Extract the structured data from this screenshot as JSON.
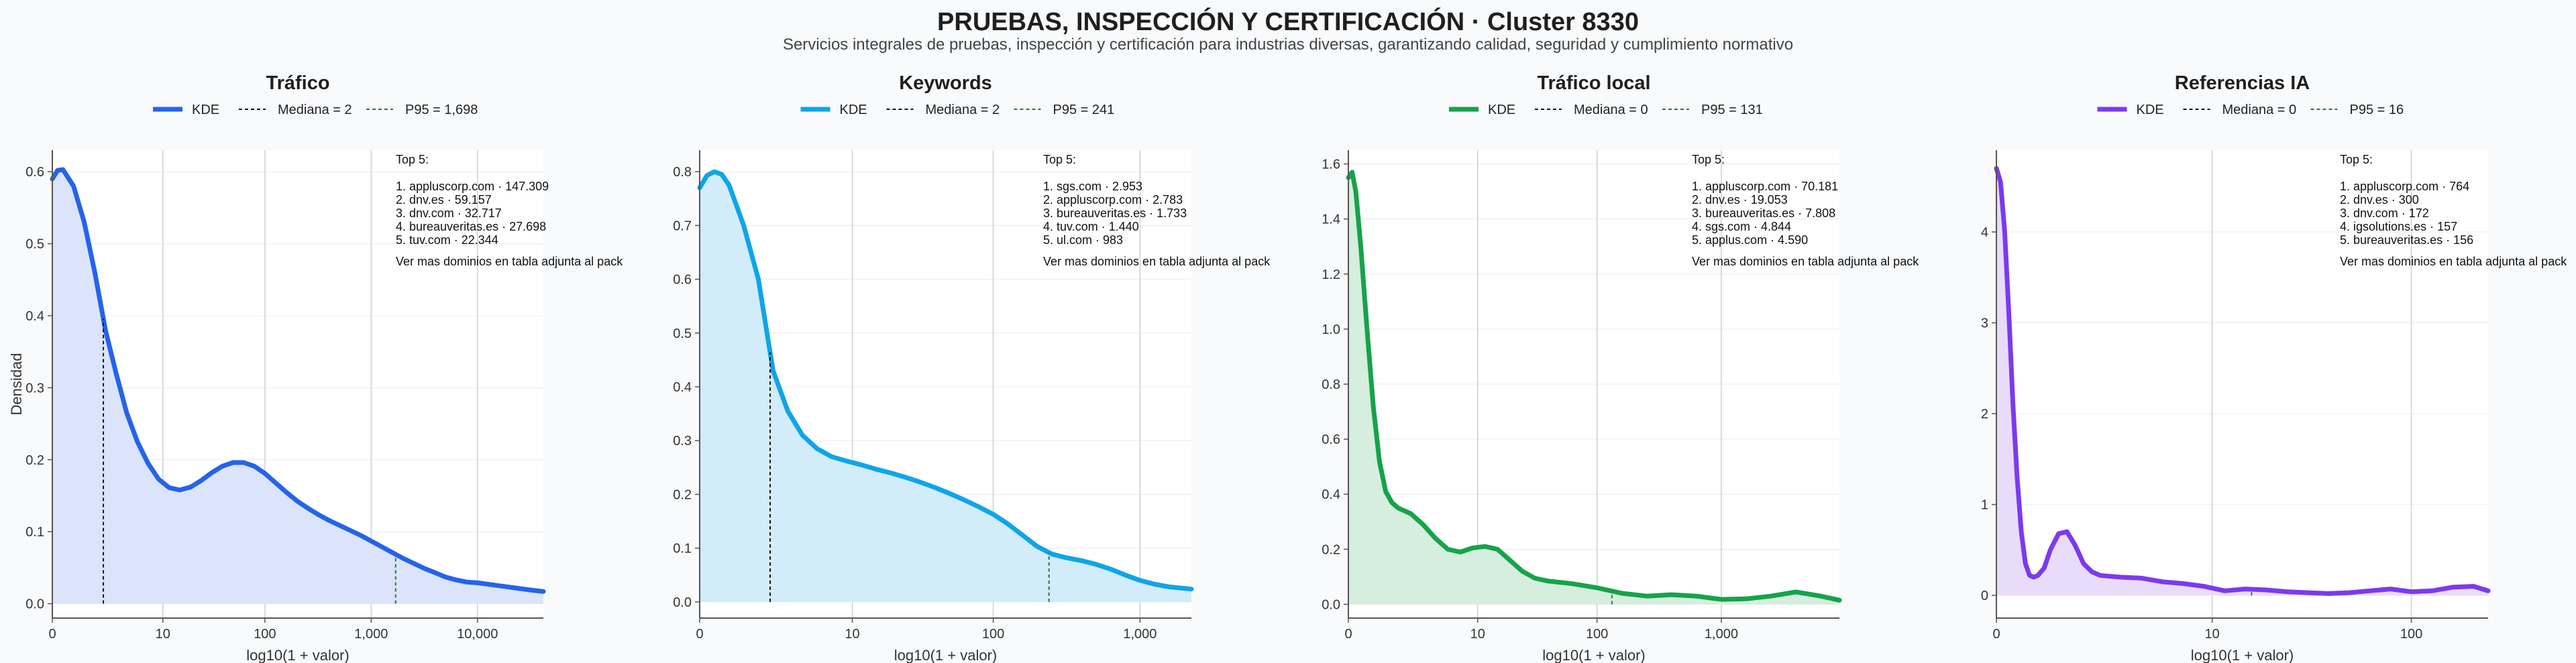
{
  "page": {
    "title": "PRUEBAS, INSPECCIÓN Y CERTIFICACIÓN · Cluster 8330",
    "subtitle": "Servicios integrales de pruebas, inspección y certificación para industrias diversas, garantizando calidad, seguridad y cumplimiento normativo"
  },
  "chart_data": [
    {
      "type": "area",
      "title": "Tráfico",
      "xlabel": "log10(1 + valor)",
      "ylabel": "Densidad",
      "color": "#2563eb",
      "fill": "#dbe4fb",
      "xlim": [
        0,
        4.62
      ],
      "ylim": [
        -0.02,
        0.63
      ],
      "yticks": [
        0.0,
        0.1,
        0.2,
        0.3,
        0.4,
        0.5,
        0.6
      ],
      "ytick_labels": [
        "0.0",
        "0.1",
        "0.2",
        "0.3",
        "0.4",
        "0.5",
        "0.6"
      ],
      "xticks": [
        0,
        1.04,
        2.0,
        3.0,
        4.0
      ],
      "xtick_labels": [
        "0",
        "10",
        "100",
        "1,000",
        "10,000"
      ],
      "legend": [
        "KDE",
        "Mediana = 2",
        "P95 = 1,698"
      ],
      "median_x": 0.48,
      "p95_x": 3.23,
      "x": [
        0,
        0.05,
        0.1,
        0.2,
        0.3,
        0.4,
        0.5,
        0.6,
        0.7,
        0.8,
        0.9,
        1.0,
        1.1,
        1.2,
        1.3,
        1.4,
        1.5,
        1.6,
        1.7,
        1.8,
        1.9,
        2.0,
        2.1,
        2.2,
        2.3,
        2.4,
        2.5,
        2.6,
        2.7,
        2.8,
        2.9,
        3.0,
        3.1,
        3.2,
        3.3,
        3.4,
        3.5,
        3.6,
        3.7,
        3.8,
        3.9,
        4.0,
        4.1,
        4.2,
        4.3,
        4.4,
        4.5,
        4.62
      ],
      "y": [
        0.59,
        0.602,
        0.603,
        0.58,
        0.53,
        0.46,
        0.38,
        0.32,
        0.265,
        0.225,
        0.195,
        0.173,
        0.161,
        0.158,
        0.162,
        0.171,
        0.182,
        0.191,
        0.196,
        0.196,
        0.191,
        0.181,
        0.168,
        0.155,
        0.143,
        0.133,
        0.124,
        0.116,
        0.109,
        0.102,
        0.095,
        0.087,
        0.079,
        0.071,
        0.063,
        0.056,
        0.049,
        0.043,
        0.037,
        0.033,
        0.03,
        0.029,
        0.027,
        0.025,
        0.023,
        0.021,
        0.019,
        0.017
      ],
      "top5_title": "Top 5:",
      "top5": [
        "1. appluscorp.com · 147.309",
        "2. dnv.es · 59.157",
        "3. dnv.com · 32.717",
        "4. bureauveritas.es · 27.698",
        "5. tuv.com · 22.344"
      ],
      "footnote": "Ver mas dominios en tabla adjunta al pack"
    },
    {
      "type": "area",
      "title": "Keywords",
      "xlabel": "log10(1 + valor)",
      "ylabel": "",
      "color": "#0ea5e9",
      "fill": "#d2ecf9",
      "xlim": [
        0,
        3.35
      ],
      "ylim": [
        -0.03,
        0.84
      ],
      "yticks": [
        0.0,
        0.1,
        0.2,
        0.3,
        0.4,
        0.5,
        0.6,
        0.7,
        0.8
      ],
      "ytick_labels": [
        "0.0",
        "0.1",
        "0.2",
        "0.3",
        "0.4",
        "0.5",
        "0.6",
        "0.7",
        "0.8"
      ],
      "xticks": [
        0,
        1.04,
        2.0,
        3.0
      ],
      "xtick_labels": [
        "0",
        "10",
        "100",
        "1,000"
      ],
      "legend": [
        "KDE",
        "Mediana = 2",
        "P95 = 241"
      ],
      "median_x": 0.48,
      "p95_x": 2.38,
      "x": [
        0,
        0.05,
        0.1,
        0.15,
        0.2,
        0.3,
        0.4,
        0.5,
        0.6,
        0.7,
        0.8,
        0.9,
        1.0,
        1.1,
        1.2,
        1.3,
        1.4,
        1.5,
        1.6,
        1.7,
        1.8,
        1.9,
        2.0,
        2.1,
        2.2,
        2.3,
        2.4,
        2.5,
        2.6,
        2.7,
        2.8,
        2.9,
        3.0,
        3.1,
        3.2,
        3.35
      ],
      "y": [
        0.77,
        0.793,
        0.8,
        0.795,
        0.775,
        0.7,
        0.6,
        0.43,
        0.355,
        0.31,
        0.285,
        0.27,
        0.262,
        0.255,
        0.247,
        0.24,
        0.232,
        0.223,
        0.213,
        0.202,
        0.19,
        0.177,
        0.163,
        0.145,
        0.124,
        0.103,
        0.089,
        0.082,
        0.077,
        0.07,
        0.061,
        0.05,
        0.04,
        0.033,
        0.028,
        0.024
      ],
      "top5_title": "Top 5:",
      "top5": [
        "1. sgs.com · 2.953",
        "2. appluscorp.com · 2.783",
        "3. bureauveritas.es · 1.733",
        "4. tuv.com · 1.440",
        "5. ul.com · 983"
      ],
      "footnote": "Ver mas dominios en tabla adjunta al pack"
    },
    {
      "type": "area",
      "title": "Tráfico local",
      "xlabel": "log10(1 + valor)",
      "ylabel": "",
      "color": "#16a34a",
      "fill": "#d5eedd",
      "xlim": [
        0,
        3.95
      ],
      "ylim": [
        -0.05,
        1.65
      ],
      "yticks": [
        0.0,
        0.2,
        0.4,
        0.6,
        0.8,
        1.0,
        1.2,
        1.4,
        1.6
      ],
      "ytick_labels": [
        "0.0",
        "0.2",
        "0.4",
        "0.6",
        "0.8",
        "1.0",
        "1.2",
        "1.4",
        "1.6"
      ],
      "xticks": [
        0,
        1.04,
        2.0,
        3.0
      ],
      "xtick_labels": [
        "0",
        "10",
        "100",
        "1,000"
      ],
      "legend": [
        "KDE",
        "Mediana = 0",
        "P95 = 131"
      ],
      "median_x": 0.0,
      "p95_x": 2.12,
      "x": [
        0,
        0.03,
        0.06,
        0.1,
        0.15,
        0.2,
        0.25,
        0.3,
        0.35,
        0.4,
        0.5,
        0.6,
        0.7,
        0.8,
        0.9,
        1.0,
        1.1,
        1.2,
        1.3,
        1.4,
        1.5,
        1.6,
        1.8,
        2.0,
        2.2,
        2.4,
        2.6,
        2.8,
        3.0,
        3.2,
        3.4,
        3.6,
        3.8,
        3.95
      ],
      "y": [
        1.55,
        1.57,
        1.5,
        1.3,
        1.0,
        0.72,
        0.52,
        0.41,
        0.37,
        0.35,
        0.33,
        0.29,
        0.24,
        0.2,
        0.19,
        0.205,
        0.21,
        0.2,
        0.16,
        0.12,
        0.095,
        0.085,
        0.075,
        0.06,
        0.04,
        0.03,
        0.035,
        0.03,
        0.018,
        0.02,
        0.03,
        0.045,
        0.03,
        0.015
      ],
      "top5_title": "Top 5:",
      "top5": [
        "1. appluscorp.com · 70.181",
        "2. dnv.es · 19.053",
        "3. bureauveritas.es · 7.808",
        "4. sgs.com · 4.844",
        "5. applus.com · 4.590"
      ],
      "footnote": "Ver mas dominios en tabla adjunta al pack"
    },
    {
      "type": "area",
      "title": "Referencias IA",
      "xlabel": "log10(1 + valor)",
      "ylabel": "",
      "color": "#7c3aed",
      "fill": "#e8dcfa",
      "xlim": [
        0,
        2.37
      ],
      "ylim": [
        -0.25,
        4.9
      ],
      "yticks": [
        0,
        1,
        2,
        3,
        4
      ],
      "ytick_labels": [
        "0",
        "1",
        "2",
        "3",
        "4"
      ],
      "xticks": [
        0,
        1.04,
        2.0
      ],
      "xtick_labels": [
        "0",
        "10",
        "100"
      ],
      "legend": [
        "KDE",
        "Mediana = 0",
        "P95 = 16"
      ],
      "median_x": 0.0,
      "p95_x": 1.23,
      "x": [
        0,
        0.02,
        0.04,
        0.06,
        0.08,
        0.1,
        0.12,
        0.14,
        0.16,
        0.18,
        0.2,
        0.23,
        0.26,
        0.3,
        0.34,
        0.38,
        0.42,
        0.46,
        0.5,
        0.55,
        0.6,
        0.7,
        0.8,
        0.9,
        1.0,
        1.1,
        1.2,
        1.3,
        1.4,
        1.5,
        1.6,
        1.7,
        1.8,
        1.9,
        2.0,
        2.1,
        2.2,
        2.3,
        2.37
      ],
      "y": [
        4.7,
        4.55,
        4.0,
        3.1,
        2.1,
        1.3,
        0.7,
        0.35,
        0.22,
        0.2,
        0.22,
        0.3,
        0.5,
        0.68,
        0.7,
        0.55,
        0.35,
        0.26,
        0.22,
        0.21,
        0.2,
        0.19,
        0.15,
        0.13,
        0.1,
        0.05,
        0.07,
        0.06,
        0.04,
        0.03,
        0.02,
        0.03,
        0.05,
        0.07,
        0.04,
        0.05,
        0.09,
        0.1,
        0.05
      ],
      "top5_title": "Top 5:",
      "top5": [
        "1. appluscorp.com · 764",
        "2. dnv.es · 300",
        "3. dnv.com · 172",
        "4. igsolutions.es · 157",
        "5. bureauveritas.es · 156"
      ],
      "footnote": "Ver mas dominios en tabla adjunta al pack"
    }
  ]
}
